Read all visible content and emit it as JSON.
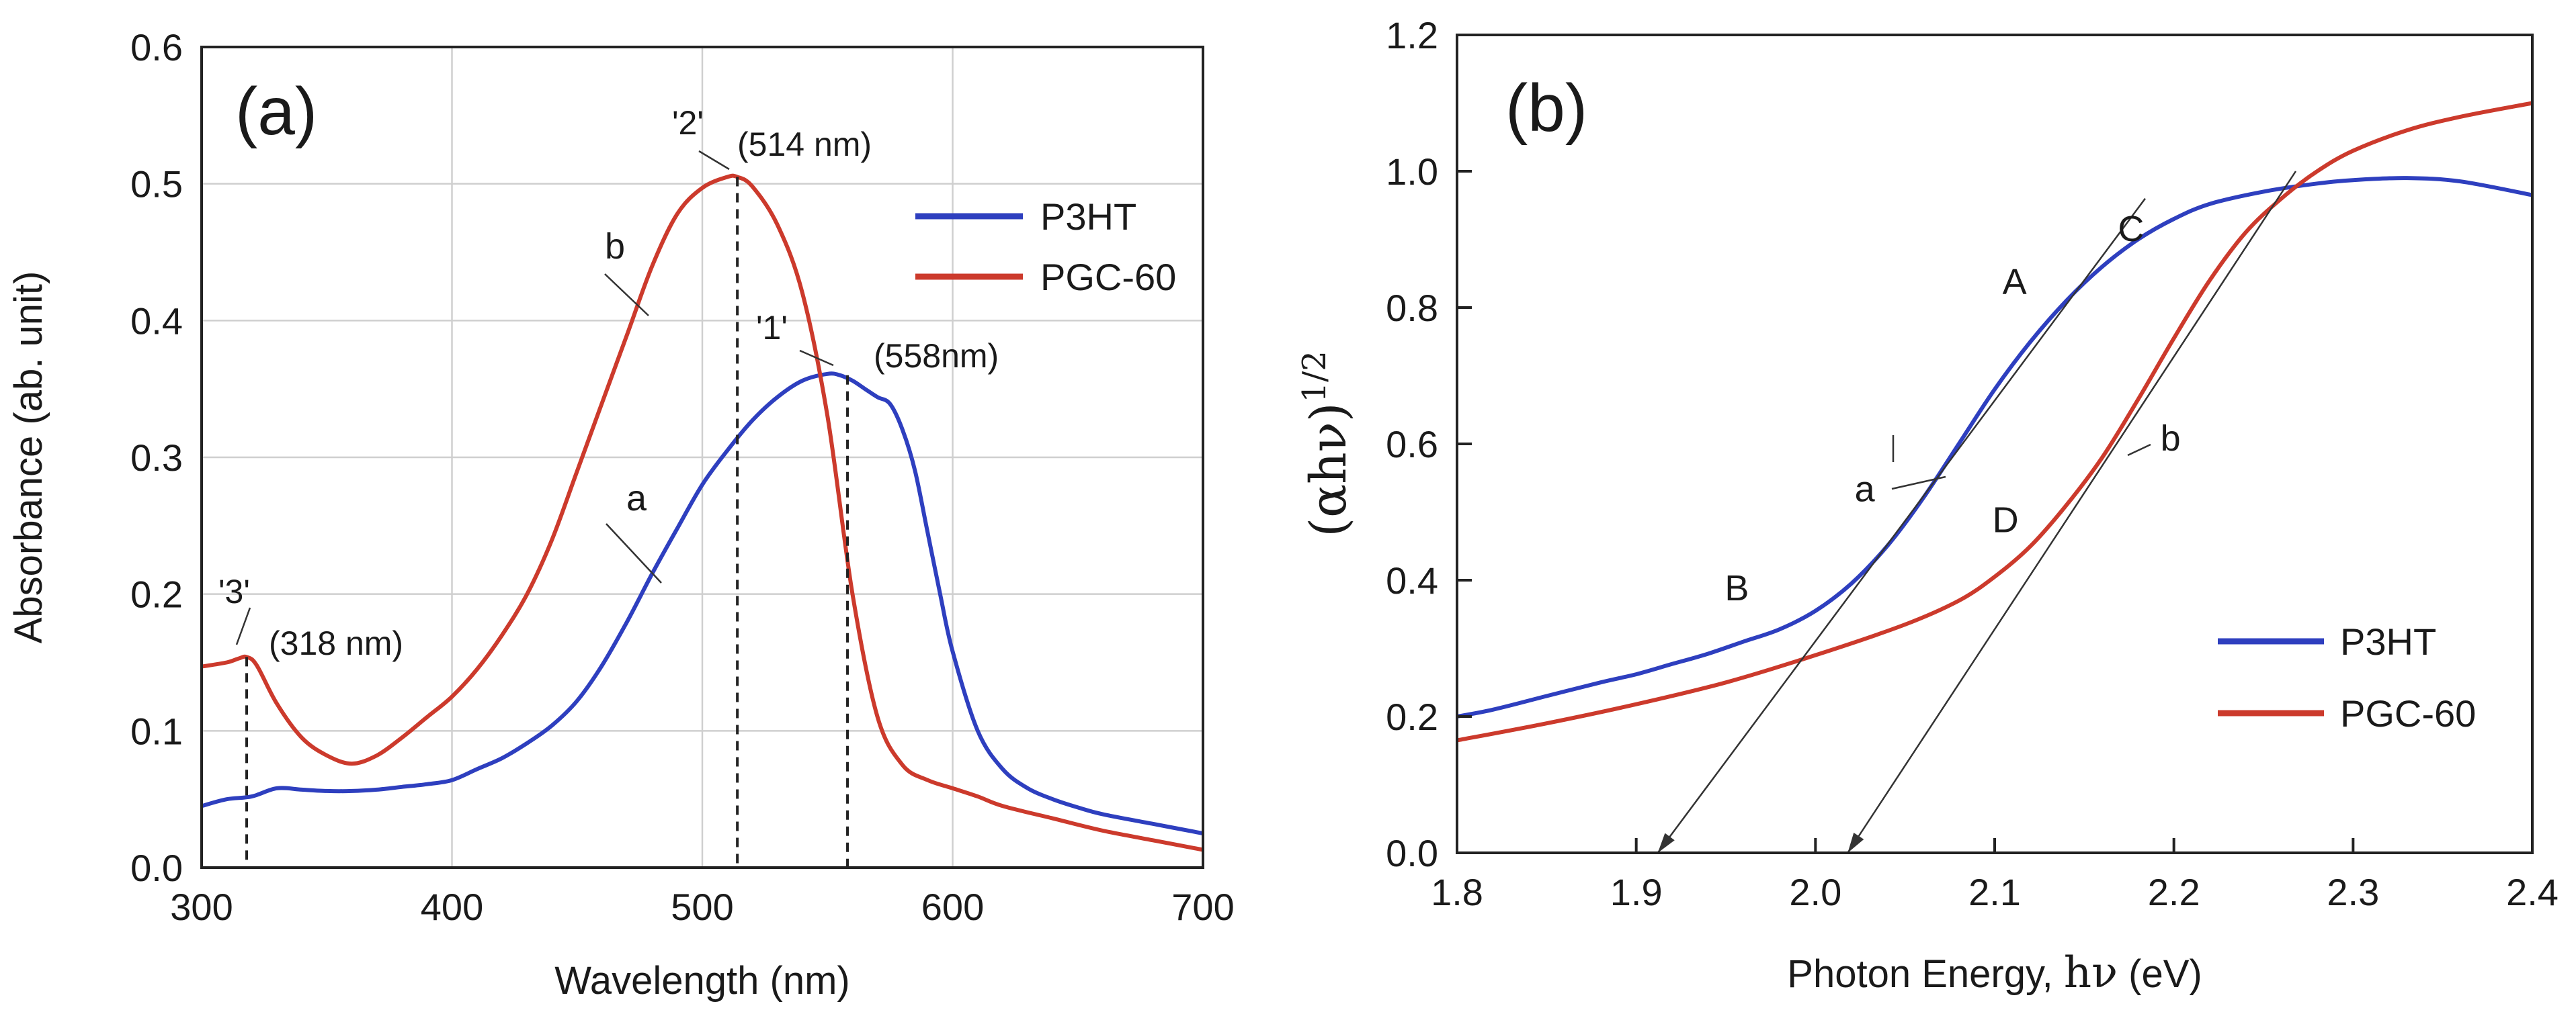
{
  "chart_data": [
    {
      "panel": "(a)",
      "type": "line",
      "xlabel": "Wavelength (nm)",
      "ylabel": "Absorbance (ab. unit)",
      "xlim": [
        300,
        700
      ],
      "ylim": [
        0.0,
        0.6
      ],
      "xticks": [
        "300",
        "400",
        "500",
        "600",
        "700"
      ],
      "yticks": [
        "0.0",
        "0.1",
        "0.2",
        "0.3",
        "0.4",
        "0.5",
        "0.6"
      ],
      "grid": true,
      "legend_position": "top-right",
      "series": [
        {
          "name": "P3HT",
          "color": "#2e3fbf",
          "curve_label": "a",
          "x": [
            300,
            310,
            320,
            330,
            340,
            350,
            360,
            370,
            380,
            390,
            400,
            410,
            420,
            430,
            440,
            450,
            460,
            470,
            480,
            490,
            500,
            510,
            520,
            530,
            540,
            550,
            555,
            560,
            565,
            570,
            575,
            580,
            585,
            590,
            595,
            600,
            610,
            620,
            630,
            640,
            650,
            660,
            680,
            700
          ],
          "y": [
            0.045,
            0.05,
            0.052,
            0.058,
            0.057,
            0.056,
            0.056,
            0.057,
            0.059,
            0.061,
            0.064,
            0.072,
            0.08,
            0.091,
            0.104,
            0.122,
            0.148,
            0.18,
            0.215,
            0.248,
            0.28,
            0.305,
            0.327,
            0.344,
            0.356,
            0.361,
            0.36,
            0.356,
            0.35,
            0.344,
            0.339,
            0.32,
            0.29,
            0.245,
            0.2,
            0.158,
            0.1,
            0.072,
            0.058,
            0.05,
            0.044,
            0.039,
            0.032,
            0.025
          ]
        },
        {
          "name": "PGC-60",
          "color": "#cc3a2c",
          "curve_label": "b",
          "x": [
            300,
            310,
            315,
            318,
            322,
            330,
            340,
            350,
            360,
            370,
            380,
            390,
            400,
            410,
            420,
            430,
            440,
            450,
            460,
            470,
            480,
            490,
            500,
            510,
            514,
            520,
            530,
            540,
            550,
            560,
            570,
            580,
            590,
            600,
            610,
            620,
            640,
            660,
            680,
            700
          ],
          "y": [
            0.147,
            0.15,
            0.153,
            0.154,
            0.148,
            0.12,
            0.095,
            0.082,
            0.076,
            0.082,
            0.095,
            0.11,
            0.125,
            0.145,
            0.17,
            0.2,
            0.24,
            0.29,
            0.34,
            0.39,
            0.44,
            0.478,
            0.497,
            0.505,
            0.505,
            0.498,
            0.47,
            0.42,
            0.33,
            0.2,
            0.11,
            0.075,
            0.064,
            0.058,
            0.052,
            0.045,
            0.036,
            0.027,
            0.02,
            0.013
          ]
        }
      ],
      "annotations": [
        {
          "marker": "'1'",
          "label": "(558nm)",
          "x": 558,
          "y": 0.36,
          "dropline": true
        },
        {
          "marker": "'2'",
          "label": "(514 nm)",
          "x": 514,
          "y": 0.505,
          "dropline": true
        },
        {
          "marker": "'3'",
          "label": "(318 nm)",
          "x": 318,
          "y": 0.154,
          "dropline": true
        }
      ]
    },
    {
      "panel": "(b)",
      "type": "line",
      "xlabel": "Photon Energy, hν (eV)",
      "xlabel_parts": {
        "prefix": "Photon Energy, ",
        "symbol": "hν",
        "suffix": " (eV)"
      },
      "ylabel": "(αhν)1/2",
      "ylabel_parts": {
        "base": "(αhν)",
        "exponent": "1/2"
      },
      "xlim": [
        1.8,
        2.4
      ],
      "ylim": [
        0.0,
        1.2
      ],
      "xticks": [
        "1.8",
        "1.9",
        "2.0",
        "2.1",
        "2.2",
        "2.3",
        "2.4"
      ],
      "yticks": [
        "0.0",
        "0.2",
        "0.4",
        "0.6",
        "0.8",
        "1.0",
        "1.2"
      ],
      "grid": false,
      "legend_position": "bottom-right",
      "series": [
        {
          "name": "P3HT",
          "color": "#2e3fbf",
          "curve_label": "a",
          "x": [
            1.8,
            1.82,
            1.85,
            1.88,
            1.9,
            1.92,
            1.94,
            1.96,
            1.98,
            2.0,
            2.02,
            2.04,
            2.06,
            2.08,
            2.1,
            2.12,
            2.14,
            2.16,
            2.18,
            2.2,
            2.22,
            2.25,
            2.28,
            2.3,
            2.33,
            2.36,
            2.4
          ],
          "y": [
            0.2,
            0.21,
            0.23,
            0.25,
            0.262,
            0.277,
            0.292,
            0.31,
            0.328,
            0.355,
            0.395,
            0.45,
            0.52,
            0.6,
            0.68,
            0.75,
            0.81,
            0.86,
            0.9,
            0.93,
            0.952,
            0.97,
            0.982,
            0.987,
            0.99,
            0.985,
            0.965
          ]
        },
        {
          "name": "PGC-60",
          "color": "#cc3a2c",
          "curve_label": "b",
          "x": [
            1.8,
            1.85,
            1.9,
            1.95,
            2.0,
            2.05,
            2.08,
            2.1,
            2.12,
            2.14,
            2.16,
            2.18,
            2.2,
            2.22,
            2.24,
            2.26,
            2.28,
            2.3,
            2.33,
            2.36,
            2.4
          ],
          "y": [
            0.165,
            0.19,
            0.218,
            0.25,
            0.29,
            0.335,
            0.37,
            0.405,
            0.45,
            0.51,
            0.58,
            0.665,
            0.755,
            0.84,
            0.91,
            0.96,
            1.0,
            1.03,
            1.06,
            1.08,
            1.1
          ]
        }
      ],
      "tangent_lines": [
        {
          "through": "A-B",
          "from": [
            1.912,
            0.0
          ],
          "to": [
            2.184,
            0.96
          ],
          "x_intercept": 1.912
        },
        {
          "through": "C-D",
          "from": [
            2.018,
            0.0
          ],
          "to": [
            2.268,
            1.0
          ],
          "x_intercept": 2.018
        }
      ],
      "point_labels": [
        {
          "text": "A",
          "x": 2.14,
          "y": 0.8
        },
        {
          "text": "B",
          "x": 2.0,
          "y": 0.39
        },
        {
          "text": "C",
          "x": 2.21,
          "y": 0.87
        },
        {
          "text": "D",
          "x": 2.14,
          "y": 0.5
        },
        {
          "text": "a",
          "x": 2.08,
          "y": 0.56
        },
        {
          "text": "b",
          "x": 2.17,
          "y": 0.6
        }
      ]
    }
  ]
}
